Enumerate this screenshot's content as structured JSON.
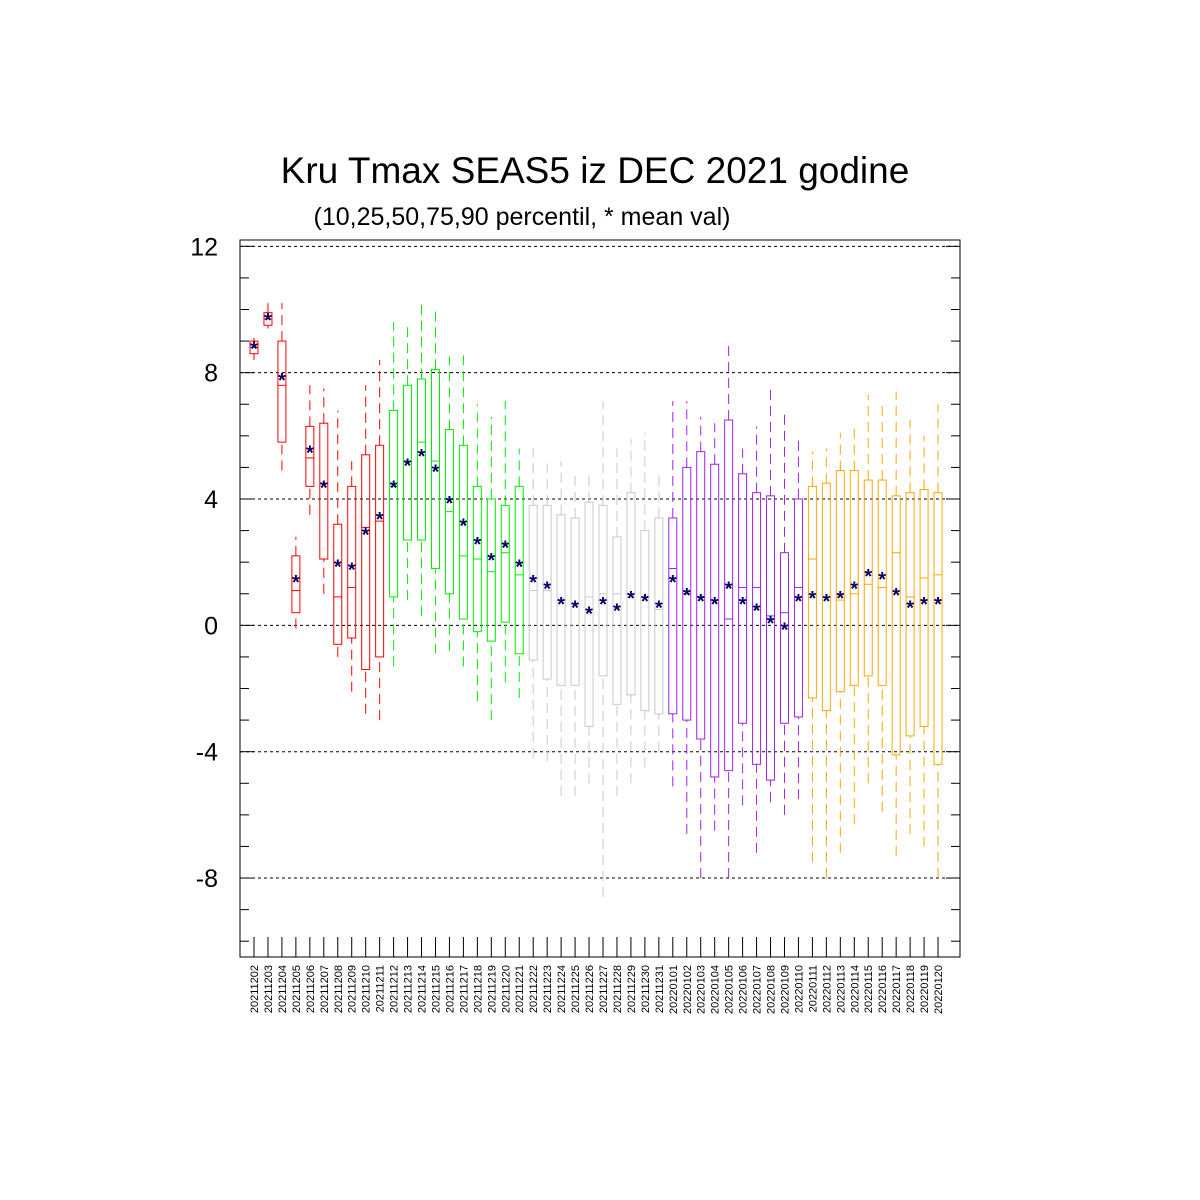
{
  "chart_data": {
    "type": "box",
    "title": "Kru Tmax SEAS5 iz DEC 2021 godine",
    "subtitle": "(10,25,50,75,90 percentil, * mean val)",
    "ylim": [
      -10.5,
      12.2
    ],
    "yticks": [
      12,
      8,
      4,
      0,
      -4,
      -8
    ],
    "ytick_labels": [
      "12",
      "8",
      "4",
      "0",
      "-4",
      "-8"
    ],
    "grid": "horizontal dashed at labeled y ticks",
    "mean_marker": "*",
    "mean_marker_color": "#000066",
    "categories": [
      "20211202",
      "20211203",
      "20211204",
      "20211205",
      "20211206",
      "20211207",
      "20211208",
      "20211209",
      "20211210",
      "20211211",
      "20211212",
      "20211213",
      "20211214",
      "20211215",
      "20211216",
      "20211217",
      "20211218",
      "20211219",
      "20211220",
      "20211221",
      "20211222",
      "20211223",
      "20211224",
      "20211225",
      "20211226",
      "20211227",
      "20211228",
      "20211229",
      "20211230",
      "20211231",
      "20220101",
      "20220102",
      "20220103",
      "20220104",
      "20220105",
      "20220106",
      "20220107",
      "20220108",
      "20220109",
      "20220110",
      "20220111",
      "20220112",
      "20220113",
      "20220114",
      "20220115",
      "20220116",
      "20220117",
      "20220118",
      "20220119",
      "20220120"
    ],
    "groups": [
      {
        "color": "#ff0000",
        "from": 0,
        "to": 9
      },
      {
        "color": "#00ee00",
        "from": 10,
        "to": 19
      },
      {
        "color": "#c8c8c8",
        "from": 20,
        "to": 29
      },
      {
        "color": "#a020f0",
        "from": 30,
        "to": 39
      },
      {
        "color": "#ffa500",
        "from": 40,
        "to": 49
      }
    ],
    "p10": [
      8.4,
      9.4,
      4.9,
      -0.1,
      3.5,
      1.0,
      -1.0,
      -2.1,
      -2.8,
      -3.0,
      -1.3,
      0.8,
      0.3,
      -0.9,
      -0.8,
      -1.3,
      -2.4,
      -3.0,
      -1.8,
      -2.3,
      -4.2,
      -4.3,
      -5.4,
      -5.4,
      -5.0,
      -8.6,
      -5.4,
      -5.0,
      -4.5,
      -4.0,
      -5.1,
      -6.6,
      -8.0,
      -6.5,
      -8.0,
      -5.7,
      -7.2,
      -5.6,
      -6.0,
      -5.5,
      -7.5,
      -8.0,
      -7.2,
      -6.3,
      -5.0,
      -5.9,
      -7.3,
      -6.6,
      -7.0,
      -8.0
    ],
    "p25": [
      8.6,
      9.5,
      5.8,
      0.4,
      4.4,
      2.1,
      -0.6,
      -0.4,
      -1.4,
      -1.0,
      0.9,
      2.7,
      2.7,
      1.8,
      1.0,
      0.2,
      -0.2,
      -0.5,
      0.1,
      -0.9,
      -1.1,
      -1.7,
      -1.9,
      -1.9,
      -3.2,
      -1.6,
      -2.5,
      -2.2,
      -2.7,
      -2.8,
      -2.8,
      -3.0,
      -3.6,
      -4.8,
      -4.6,
      -3.1,
      -4.4,
      -4.9,
      -3.1,
      -2.9,
      -2.3,
      -2.7,
      -2.1,
      -1.9,
      -1.6,
      -1.9,
      -4.1,
      -3.5,
      -3.2,
      -4.4
    ],
    "p50": [
      8.8,
      9.7,
      7.6,
      1.1,
      5.3,
      4.5,
      0.9,
      1.2,
      3.1,
      3.3,
      4.4,
      5.2,
      5.8,
      5.2,
      3.6,
      2.2,
      2.1,
      1.7,
      2.3,
      1.6,
      1.1,
      1.1,
      0.8,
      0.7,
      0.9,
      1.0,
      1.0,
      0.9,
      0.9,
      0.5,
      1.8,
      1.0,
      0.9,
      0.8,
      0.2,
      1.2,
      1.2,
      0.3,
      0.4,
      1.2,
      2.1,
      0.9,
      0.8,
      1.0,
      1.3,
      1.2,
      2.3,
      0.9,
      1.5,
      1.6
    ],
    "p75": [
      9.0,
      9.9,
      9.0,
      2.2,
      6.3,
      6.4,
      3.2,
      4.4,
      5.4,
      5.7,
      6.8,
      7.6,
      7.8,
      8.1,
      6.2,
      5.7,
      4.4,
      4.0,
      3.8,
      4.4,
      3.8,
      3.8,
      3.5,
      3.4,
      3.9,
      3.8,
      2.8,
      4.2,
      3.0,
      3.4,
      3.4,
      5.0,
      5.5,
      5.1,
      6.5,
      4.8,
      4.2,
      4.1,
      2.3,
      4.0,
      4.4,
      4.5,
      4.9,
      4.9,
      4.6,
      4.6,
      4.1,
      4.2,
      4.3,
      4.2
    ],
    "p90": [
      9.1,
      10.2,
      10.2,
      2.8,
      7.6,
      7.5,
      6.8,
      5.2,
      7.6,
      8.4,
      9.6,
      9.5,
      10.2,
      10.0,
      8.5,
      8.7,
      7.0,
      6.6,
      7.1,
      5.6,
      5.6,
      5.2,
      5.2,
      4.8,
      4.8,
      7.1,
      5.6,
      5.9,
      6.1,
      4.8,
      7.1,
      7.1,
      6.6,
      6.4,
      9.0,
      5.6,
      6.3,
      7.5,
      6.7,
      5.9,
      5.5,
      5.6,
      6.1,
      6.3,
      7.3,
      7.0,
      7.4,
      6.5,
      6.0,
      7.0
    ],
    "mean": [
      8.8,
      9.7,
      7.8,
      1.4,
      5.5,
      4.4,
      1.9,
      1.8,
      2.9,
      3.4,
      4.4,
      5.1,
      5.4,
      4.9,
      3.9,
      3.2,
      2.6,
      2.1,
      2.5,
      1.9,
      1.4,
      1.2,
      0.7,
      0.6,
      0.4,
      0.7,
      0.5,
      0.9,
      0.8,
      0.6,
      1.4,
      1.0,
      0.8,
      0.7,
      1.2,
      0.7,
      0.5,
      0.1,
      -0.1,
      0.8,
      0.9,
      0.8,
      0.9,
      1.2,
      1.6,
      1.5,
      1.0,
      0.6,
      0.7,
      0.7
    ]
  }
}
